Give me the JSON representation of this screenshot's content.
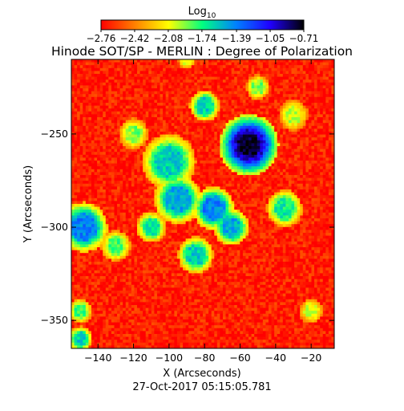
{
  "chart_data": {
    "type": "heatmap",
    "title": "Hinode SOT/SP - MERLIN : Degree of Polarization",
    "xlabel": "X (Arcseconds)",
    "ylabel": "Y (Arcseconds)",
    "xlim": [
      -155,
      -7
    ],
    "ylim": [
      -365,
      -210
    ],
    "xticks": [
      -140,
      -120,
      -100,
      -80,
      -60,
      -40,
      -20
    ],
    "yticks": [
      -250,
      -300,
      -350
    ],
    "xtick_labels": [
      "−140",
      "−120",
      "−100",
      "−80",
      "−60",
      "−40",
      "−20"
    ],
    "ytick_labels": [
      "−250",
      "−300",
      "−350"
    ],
    "timestamp": "27-Oct-2017 05:15:05.781",
    "colorbar": {
      "title": "Log",
      "title_subscript": "10",
      "ticks": [
        -2.76,
        -2.42,
        -2.08,
        -1.74,
        -1.39,
        -1.05,
        -0.71
      ],
      "tick_labels": [
        "−2.76",
        "−2.42",
        "−2.08",
        "−1.74",
        "−1.39",
        "−1.05",
        "−0.71"
      ],
      "range": [
        -2.76,
        -0.71
      ],
      "colormap": [
        "#ff0000",
        "#ff8000",
        "#ffff00",
        "#00ff80",
        "#0080ff",
        "#2000ff",
        "#000000"
      ]
    },
    "features": [
      {
        "x": -55,
        "y": -256,
        "value": -0.75,
        "radius": 7
      },
      {
        "x": -55,
        "y": -256,
        "value": -1.0,
        "radius": 10
      },
      {
        "x": -80,
        "y": -235,
        "value": -1.6,
        "radius": 5
      },
      {
        "x": -100,
        "y": -265,
        "value": -1.6,
        "radius": 9
      },
      {
        "x": -95,
        "y": -285,
        "value": -1.5,
        "radius": 8
      },
      {
        "x": -75,
        "y": -290,
        "value": -1.4,
        "radius": 7
      },
      {
        "x": -65,
        "y": -300,
        "value": -1.5,
        "radius": 6
      },
      {
        "x": -85,
        "y": -315,
        "value": -1.6,
        "radius": 6
      },
      {
        "x": -110,
        "y": -300,
        "value": -1.7,
        "radius": 5
      },
      {
        "x": -148,
        "y": -300,
        "value": -1.4,
        "radius": 8
      },
      {
        "x": -130,
        "y": -310,
        "value": -1.8,
        "radius": 5
      },
      {
        "x": -50,
        "y": -225,
        "value": -1.9,
        "radius": 4
      },
      {
        "x": -30,
        "y": -240,
        "value": -2.0,
        "radius": 5
      },
      {
        "x": -35,
        "y": -290,
        "value": -1.7,
        "radius": 6
      },
      {
        "x": -120,
        "y": -250,
        "value": -1.9,
        "radius": 5
      },
      {
        "x": -90,
        "y": -210,
        "value": -2.0,
        "radius": 3
      },
      {
        "x": -150,
        "y": -345,
        "value": -1.8,
        "radius": 4
      },
      {
        "x": -150,
        "y": -360,
        "value": -1.6,
        "radius": 4
      },
      {
        "x": -20,
        "y": -345,
        "value": -2.0,
        "radius": 4
      }
    ]
  }
}
